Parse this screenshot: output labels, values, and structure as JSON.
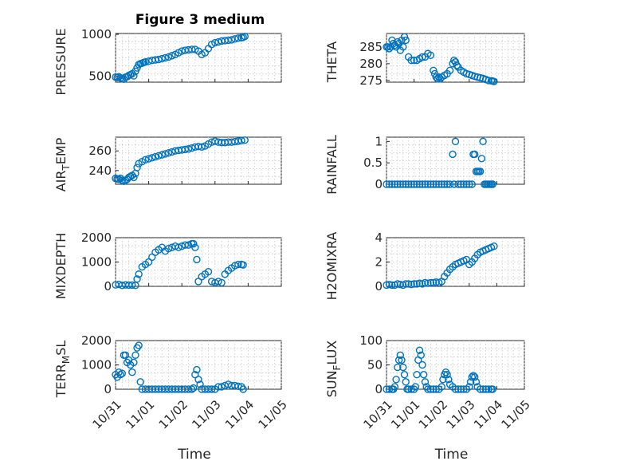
{
  "figure": {
    "title": "Figure 3 medium",
    "marker_color": "#0072BD"
  },
  "chart_data": [
    {
      "type": "scatter",
      "ylabel": "PRESSURE",
      "ylim": [
        430,
        1010
      ],
      "yticks": [
        500,
        1000
      ],
      "xlim": [
        0,
        5
      ],
      "xticks": [],
      "x": [
        0,
        0.05,
        0.1,
        0.15,
        0.2,
        0.25,
        0.3,
        0.35,
        0.4,
        0.45,
        0.5,
        0.55,
        0.6,
        0.65,
        0.7,
        0.75,
        0.8,
        0.85,
        0.9,
        1.0,
        1.1,
        1.2,
        1.3,
        1.4,
        1.5,
        1.6,
        1.7,
        1.8,
        1.9,
        2.0,
        2.1,
        2.2,
        2.3,
        2.4,
        2.5,
        2.6,
        2.7,
        2.8,
        2.9,
        3.0,
        3.1,
        3.2,
        3.3,
        3.4,
        3.5,
        3.6,
        3.7,
        3.8,
        3.85,
        3.9
      ],
      "y": [
        490,
        485,
        495,
        480,
        470,
        465,
        490,
        495,
        510,
        520,
        530,
        505,
        560,
        600,
        640,
        650,
        655,
        665,
        670,
        680,
        690,
        695,
        700,
        710,
        720,
        730,
        745,
        760,
        780,
        800,
        810,
        815,
        820,
        820,
        800,
        760,
        780,
        830,
        880,
        900,
        910,
        920,
        925,
        930,
        935,
        945,
        955,
        960,
        965,
        975
      ]
    },
    {
      "type": "scatter",
      "ylabel": "THETA",
      "ylim": [
        274.5,
        289
      ],
      "yticks": [
        275,
        280,
        285
      ],
      "xlim": [
        0,
        5
      ],
      "xticks": [],
      "x": [
        0,
        0.05,
        0.1,
        0.15,
        0.2,
        0.25,
        0.3,
        0.35,
        0.4,
        0.45,
        0.5,
        0.55,
        0.6,
        0.65,
        0.7,
        0.8,
        0.9,
        1.0,
        1.1,
        1.2,
        1.3,
        1.4,
        1.5,
        1.6,
        1.7,
        1.75,
        1.8,
        1.85,
        1.9,
        1.95,
        2.0,
        2.1,
        2.2,
        2.3,
        2.4,
        2.45,
        2.5,
        2.55,
        2.6,
        2.7,
        2.8,
        2.9,
        3.0,
        3.1,
        3.2,
        3.3,
        3.4,
        3.5,
        3.6,
        3.7,
        3.8,
        3.85,
        3.9
      ],
      "y": [
        285,
        285,
        284.5,
        285,
        287,
        286,
        285.5,
        285,
        286.5,
        286,
        284,
        287,
        285,
        288,
        287,
        282,
        281,
        281,
        281,
        281.5,
        282,
        282,
        283,
        282.5,
        278,
        277,
        276,
        275.5,
        276,
        275.5,
        276,
        276.5,
        277,
        278,
        280,
        281,
        280.5,
        279.5,
        279,
        278,
        277.5,
        277,
        276.8,
        276.5,
        276.2,
        276,
        275.8,
        275.6,
        275.3,
        275,
        274.9,
        274.8,
        274.7
      ]
    },
    {
      "type": "scatter",
      "ylabel": "AIR_TEMP",
      "ylim": [
        226,
        274
      ],
      "yticks": [
        240,
        260
      ],
      "xlim": [
        0,
        5
      ],
      "xticks": [],
      "x": [
        0,
        0.05,
        0.1,
        0.15,
        0.2,
        0.25,
        0.3,
        0.35,
        0.4,
        0.45,
        0.5,
        0.55,
        0.6,
        0.65,
        0.7,
        0.8,
        0.9,
        1.0,
        1.1,
        1.2,
        1.3,
        1.4,
        1.5,
        1.6,
        1.7,
        1.8,
        1.9,
        2.0,
        2.1,
        2.2,
        2.3,
        2.4,
        2.5,
        2.6,
        2.7,
        2.8,
        2.9,
        3.0,
        3.1,
        3.2,
        3.3,
        3.4,
        3.5,
        3.6,
        3.7,
        3.8,
        3.9
      ],
      "y": [
        232,
        231.5,
        231,
        232,
        230,
        229,
        230,
        231,
        233,
        234,
        235,
        233,
        237,
        243,
        247,
        249,
        251,
        252,
        253,
        254,
        255,
        256,
        257,
        258,
        259,
        260,
        260.5,
        261,
        261.5,
        262,
        263,
        264,
        264.5,
        264,
        265,
        267,
        269,
        270,
        269,
        268.5,
        268.5,
        269,
        269,
        269.5,
        270,
        270.5,
        271
      ]
    },
    {
      "type": "scatter",
      "ylabel": "RAINFALL",
      "ylim": [
        0,
        1.1
      ],
      "yticks": [
        0,
        0.5,
        1
      ],
      "xlim": [
        0,
        5
      ],
      "xticks": [],
      "x": [
        0,
        0.1,
        0.2,
        0.3,
        0.4,
        0.5,
        0.6,
        0.7,
        0.8,
        0.9,
        1.0,
        1.1,
        1.2,
        1.3,
        1.4,
        1.5,
        1.6,
        1.7,
        1.8,
        1.9,
        2.0,
        2.1,
        2.2,
        2.3,
        2.4,
        2.45,
        2.5,
        2.6,
        2.7,
        2.8,
        2.9,
        3.0,
        3.1,
        3.15,
        3.2,
        3.25,
        3.3,
        3.35,
        3.4,
        3.45,
        3.5,
        3.55,
        3.6,
        3.65,
        3.7,
        3.75,
        3.8,
        3.85
      ],
      "y": [
        0,
        0,
        0,
        0,
        0,
        0,
        0,
        0,
        0,
        0,
        0,
        0,
        0,
        0,
        0,
        0,
        0,
        0,
        0,
        0,
        0,
        0,
        0,
        0,
        0.7,
        0,
        1,
        0,
        0,
        0,
        0,
        0,
        0,
        0.7,
        0.7,
        0.3,
        0.3,
        0.3,
        0.3,
        0.6,
        1,
        0,
        0,
        0,
        0,
        0,
        0,
        0
      ]
    },
    {
      "type": "scatter",
      "ylabel": "MIXDEPTH",
      "ylim": [
        0,
        2000
      ],
      "yticks": [
        0,
        1000,
        2000
      ],
      "xlim": [
        0,
        5
      ],
      "xticks": [],
      "x": [
        0,
        0.1,
        0.2,
        0.3,
        0.4,
        0.5,
        0.6,
        0.65,
        0.7,
        0.8,
        0.9,
        1.0,
        1.1,
        1.2,
        1.3,
        1.4,
        1.5,
        1.6,
        1.7,
        1.8,
        1.9,
        2.0,
        2.1,
        2.2,
        2.3,
        2.35,
        2.4,
        2.45,
        2.5,
        2.6,
        2.7,
        2.8,
        2.9,
        3.0,
        3.1,
        3.2,
        3.3,
        3.4,
        3.5,
        3.6,
        3.7,
        3.8,
        3.85
      ],
      "y": [
        60,
        80,
        40,
        60,
        50,
        50,
        40,
        300,
        500,
        800,
        900,
        1000,
        1200,
        1400,
        1500,
        1600,
        1450,
        1550,
        1600,
        1650,
        1600,
        1650,
        1700,
        1700,
        1750,
        1750,
        1600,
        1100,
        200,
        400,
        500,
        600,
        200,
        150,
        200,
        150,
        500,
        650,
        750,
        850,
        900,
        900,
        880
      ]
    },
    {
      "type": "scatter",
      "ylabel": "H2OMIXRA",
      "ylim": [
        0,
        4
      ],
      "yticks": [
        0,
        2,
        4
      ],
      "xlim": [
        0,
        5
      ],
      "xticks": [],
      "x": [
        0,
        0.1,
        0.2,
        0.3,
        0.4,
        0.5,
        0.6,
        0.7,
        0.8,
        0.9,
        1.0,
        1.1,
        1.2,
        1.3,
        1.4,
        1.5,
        1.6,
        1.7,
        1.8,
        1.9,
        2.0,
        2.1,
        2.2,
        2.3,
        2.4,
        2.5,
        2.6,
        2.7,
        2.8,
        2.9,
        3.0,
        3.1,
        3.2,
        3.3,
        3.4,
        3.5,
        3.6,
        3.7,
        3.8,
        3.9
      ],
      "y": [
        0.1,
        0.15,
        0.1,
        0.1,
        0.2,
        0.15,
        0.1,
        0.2,
        0.2,
        0.15,
        0.2,
        0.2,
        0.25,
        0.2,
        0.3,
        0.25,
        0.3,
        0.3,
        0.35,
        0.3,
        0.4,
        0.8,
        1.1,
        1.4,
        1.6,
        1.8,
        1.9,
        2.0,
        2.1,
        2.2,
        1.8,
        2.0,
        2.3,
        2.6,
        2.8,
        2.9,
        3.0,
        3.1,
        3.2,
        3.3
      ]
    },
    {
      "type": "scatter",
      "ylabel": "TERR_MSL",
      "ylim": [
        0,
        2000
      ],
      "yticks": [
        0,
        1000,
        2000
      ],
      "xlim": [
        0,
        5
      ],
      "xticks": [
        "10/31",
        "11/01",
        "11/02",
        "11/03",
        "11/04",
        "11/05"
      ],
      "xlabel": "Time",
      "x": [
        0,
        0.05,
        0.1,
        0.15,
        0.2,
        0.25,
        0.3,
        0.35,
        0.4,
        0.45,
        0.5,
        0.55,
        0.6,
        0.65,
        0.7,
        0.75,
        0.8,
        0.9,
        1.0,
        1.1,
        1.2,
        1.3,
        1.4,
        1.5,
        1.6,
        1.7,
        1.8,
        1.9,
        2.0,
        2.1,
        2.2,
        2.3,
        2.35,
        2.4,
        2.45,
        2.5,
        2.55,
        2.6,
        2.7,
        2.8,
        2.9,
        3.0,
        3.1,
        3.2,
        3.3,
        3.4,
        3.5,
        3.6,
        3.7,
        3.8,
        3.85
      ],
      "y": [
        600,
        500,
        700,
        600,
        650,
        1400,
        1400,
        1100,
        1200,
        1000,
        700,
        1100,
        1400,
        1700,
        1800,
        300,
        0,
        0,
        0,
        0,
        0,
        0,
        0,
        0,
        0,
        0,
        0,
        0,
        0,
        0,
        0,
        0,
        50,
        600,
        800,
        400,
        200,
        0,
        0,
        0,
        0,
        0,
        100,
        100,
        150,
        200,
        150,
        150,
        120,
        100,
        0
      ]
    },
    {
      "type": "scatter",
      "ylabel": "SUN_FLUX",
      "ylim": [
        0,
        100
      ],
      "yticks": [
        0,
        50,
        100
      ],
      "xlim": [
        0,
        5
      ],
      "xticks": [
        "10/31",
        "11/01",
        "11/02",
        "11/03",
        "11/04",
        "11/05"
      ],
      "xlabel": "Time",
      "x": [
        0,
        0.1,
        0.2,
        0.25,
        0.3,
        0.35,
        0.4,
        0.45,
        0.5,
        0.55,
        0.6,
        0.65,
        0.7,
        0.75,
        0.8,
        0.9,
        1.0,
        1.05,
        1.1,
        1.15,
        1.2,
        1.25,
        1.3,
        1.35,
        1.4,
        1.45,
        1.5,
        1.6,
        1.7,
        1.8,
        1.9,
        2.0,
        2.05,
        2.1,
        2.15,
        2.2,
        2.25,
        2.3,
        2.4,
        2.5,
        2.6,
        2.7,
        2.8,
        2.9,
        3.0,
        3.05,
        3.1,
        3.15,
        3.2,
        3.25,
        3.3,
        3.4,
        3.5,
        3.6,
        3.7,
        3.8,
        3.85
      ],
      "y": [
        0,
        0,
        0,
        0,
        5,
        20,
        45,
        60,
        70,
        60,
        45,
        30,
        15,
        0,
        0,
        0,
        0,
        5,
        30,
        60,
        80,
        70,
        50,
        30,
        15,
        5,
        0,
        0,
        0,
        0,
        0,
        5,
        20,
        30,
        35,
        30,
        20,
        10,
        5,
        0,
        0,
        0,
        0,
        0,
        5,
        15,
        25,
        28,
        25,
        15,
        5,
        0,
        0,
        0,
        0,
        0,
        0
      ]
    }
  ]
}
